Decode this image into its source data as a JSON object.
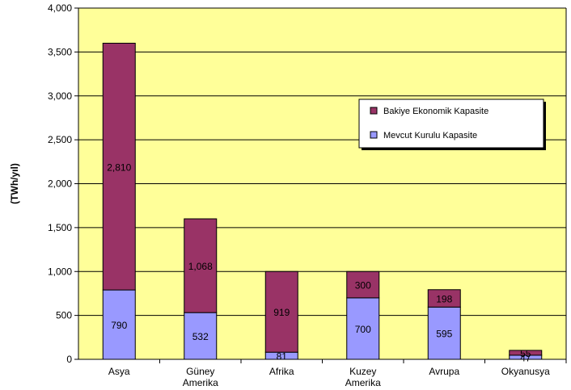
{
  "chart_data": {
    "type": "bar",
    "stacked": true,
    "title": "",
    "xlabel": "",
    "ylabel": "(TWh/yıl)",
    "ylim": [
      0,
      4000
    ],
    "yticks": [
      0,
      500,
      1000,
      1500,
      2000,
      2500,
      3000,
      3500,
      4000
    ],
    "ytick_labels": [
      "0",
      "500",
      "1,000",
      "1,500",
      "2,000",
      "2,500",
      "3,000",
      "3,500",
      "4,000"
    ],
    "grid": true,
    "legend_position": "right",
    "categories": [
      [
        "Asya"
      ],
      [
        "Güney",
        "Amerika"
      ],
      [
        "Afrika"
      ],
      [
        "Kuzey",
        "Amerika"
      ],
      [
        "Avrupa"
      ],
      [
        "Okyanusya"
      ]
    ],
    "series": [
      {
        "name": "Mevcut Kurulu Kapasite",
        "color": "#9999ff",
        "values": [
          790,
          532,
          81,
          700,
          595,
          47
        ],
        "labels": [
          "790",
          "532",
          "81",
          "700",
          "595",
          "47"
        ]
      },
      {
        "name": "Bakiye Ekonomik Kapasite",
        "color": "#993366",
        "values": [
          2810,
          1068,
          919,
          300,
          198,
          55
        ],
        "labels": [
          "2,810",
          "1,068",
          "919",
          "300",
          "198",
          "55"
        ]
      }
    ],
    "legend_order": [
      1,
      0
    ],
    "plot_background": "#ffff99"
  }
}
